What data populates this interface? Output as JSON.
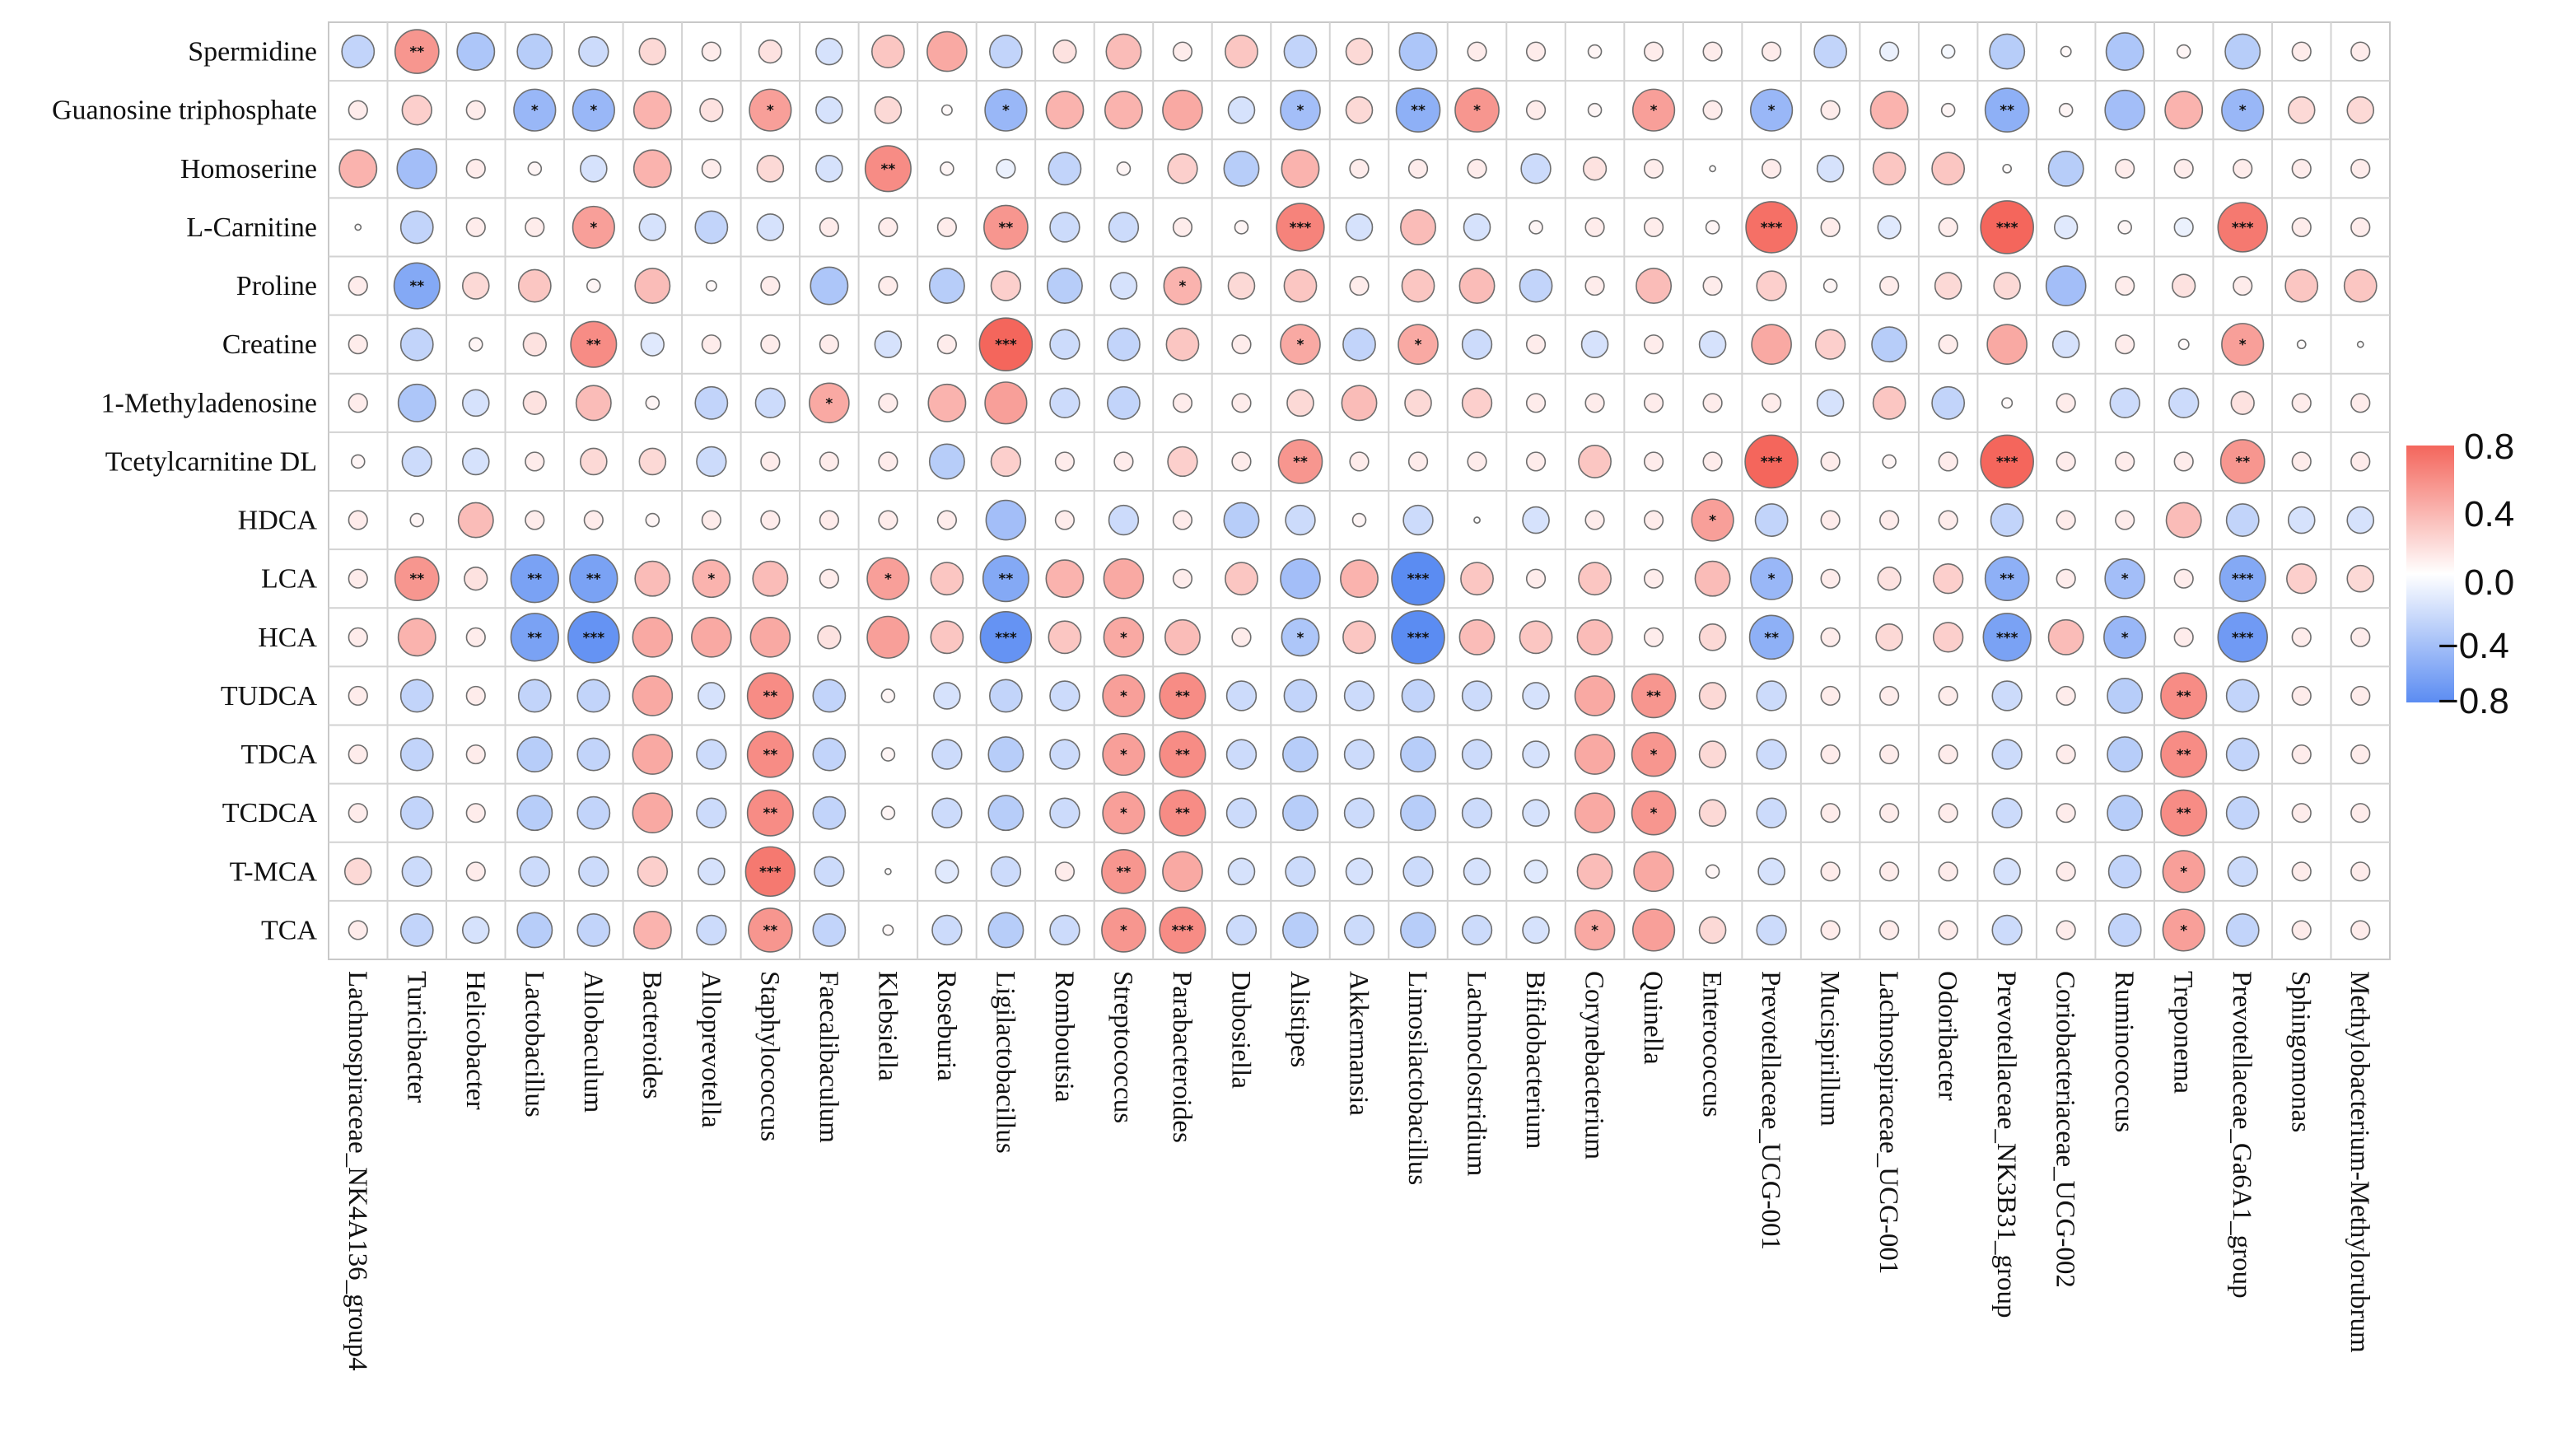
{
  "chart_data": {
    "type": "heatmap",
    "title": "",
    "xlabel": "",
    "ylabel": "",
    "rows": [
      "Spermidine",
      "Guanosine triphosphate",
      "Homoserine",
      "L-Carnitine",
      "Proline",
      "Creatine",
      "1-Methyladenosine",
      "Tcetylcarnitine DL",
      "HDCA",
      "LCA",
      "HCA",
      "TUDCA",
      "TDCA",
      "TCDCA",
      "T-MCA",
      "TCA"
    ],
    "columns": [
      "Lachnospiraceae_NK4A136_group4",
      "Turicibacter",
      "Helicobacter",
      "Lactobacillus",
      "Allobaculum",
      "Bacteroides",
      "Alloprevotella",
      "Staphylococcus",
      "Faecalibaculum",
      "Klebsiella",
      "Roseburia",
      "Ligilactobacillus",
      "Romboutsia",
      "Streptococcus",
      "Parabacteroides",
      "Dubosiella",
      "Alistipes",
      "Akkermansia",
      "Limosilactobacillus",
      "Lachnoclostridium",
      "Bifidobacterium",
      "Corynebacterium",
      "Quinella",
      "Enterococcus",
      "Prevotellaceae_UCG-001",
      "Mucispirillum",
      "Lachnospiraceae_UCG-001",
      "Odoribacter",
      "Prevotellaceae_NK3B31_group",
      "Coriobacteriaceae_UCG-002",
      "Ruminococcus",
      "Treponema",
      "Prevotellaceae_Ga6A1_group",
      "Sphingomonas",
      "Methylobacterium-Methylorubrum"
    ],
    "values": [
      [
        -0.3,
        0.55,
        -0.4,
        -0.35,
        -0.25,
        0.2,
        0.1,
        0.15,
        -0.2,
        0.3,
        0.45,
        -0.3,
        0.15,
        0.35,
        0.1,
        0.3,
        -0.3,
        0.2,
        -0.4,
        0.1,
        0.1,
        0.05,
        0.1,
        0.1,
        0.1,
        -0.3,
        -0.1,
        -0.05,
        -0.35,
        0.03,
        -0.4,
        0.05,
        -0.35,
        0.1,
        0.1
      ],
      [
        0.1,
        0.25,
        0.1,
        -0.5,
        -0.5,
        0.4,
        0.15,
        0.5,
        -0.2,
        0.2,
        0.03,
        -0.5,
        0.4,
        0.4,
        0.45,
        -0.2,
        -0.45,
        0.2,
        -0.55,
        0.55,
        0.1,
        0.05,
        0.5,
        0.1,
        -0.5,
        0.1,
        0.4,
        0.05,
        -0.55,
        0.05,
        -0.45,
        0.4,
        -0.5,
        0.2,
        0.2
      ],
      [
        0.4,
        -0.45,
        0.1,
        0.05,
        -0.2,
        0.4,
        0.1,
        0.2,
        -0.2,
        0.6,
        0.05,
        -0.1,
        -0.3,
        0.05,
        0.25,
        -0.35,
        0.4,
        0.1,
        0.1,
        0.1,
        -0.25,
        0.15,
        0.1,
        0.01,
        0.1,
        -0.2,
        0.3,
        0.3,
        0.02,
        -0.35,
        0.1,
        0.1,
        0.1,
        0.1,
        0.1
      ],
      [
        0.01,
        -0.3,
        0.1,
        0.1,
        0.5,
        -0.2,
        -0.3,
        -0.2,
        0.1,
        0.1,
        0.1,
        0.55,
        -0.25,
        -0.25,
        0.1,
        0.05,
        0.65,
        -0.2,
        0.35,
        -0.2,
        0.05,
        0.1,
        0.1,
        0.05,
        0.75,
        0.1,
        -0.15,
        0.1,
        0.8,
        -0.15,
        0.05,
        -0.1,
        0.7,
        0.1,
        0.1
      ],
      [
        0.1,
        -0.6,
        0.2,
        0.3,
        0.05,
        0.35,
        0.03,
        0.1,
        -0.4,
        0.1,
        -0.35,
        0.25,
        -0.35,
        -0.2,
        0.4,
        0.2,
        0.3,
        0.1,
        0.3,
        0.35,
        -0.3,
        0.1,
        0.35,
        0.1,
        0.25,
        0.05,
        0.1,
        0.2,
        0.2,
        -0.45,
        0.1,
        0.15,
        0.1,
        0.3,
        0.3
      ],
      [
        0.1,
        -0.3,
        0.05,
        0.15,
        0.6,
        -0.15,
        0.1,
        0.1,
        0.1,
        -0.2,
        0.1,
        0.8,
        -0.25,
        -0.3,
        0.3,
        0.1,
        0.45,
        -0.3,
        0.45,
        -0.25,
        0.1,
        -0.2,
        0.1,
        -0.2,
        0.45,
        0.25,
        -0.35,
        0.1,
        0.45,
        -0.2,
        0.1,
        0.03,
        0.5,
        0.02,
        0.01
      ],
      [
        0.1,
        -0.4,
        -0.2,
        0.15,
        0.35,
        0.05,
        -0.3,
        -0.25,
        0.45,
        0.1,
        0.4,
        0.5,
        -0.25,
        -0.3,
        0.1,
        0.1,
        0.2,
        0.35,
        0.2,
        0.25,
        0.1,
        0.1,
        0.1,
        0.1,
        0.1,
        -0.2,
        0.3,
        -0.3,
        0.03,
        0.1,
        -0.25,
        -0.25,
        0.15,
        0.1,
        0.1
      ],
      [
        0.05,
        -0.25,
        -0.2,
        0.1,
        0.2,
        0.2,
        -0.25,
        0.1,
        0.1,
        0.1,
        -0.35,
        0.25,
        0.1,
        0.1,
        0.25,
        0.1,
        0.55,
        0.1,
        0.1,
        0.1,
        0.1,
        0.3,
        0.1,
        0.1,
        0.85,
        0.1,
        0.05,
        0.1,
        0.85,
        0.1,
        0.1,
        0.1,
        0.55,
        0.1,
        0.1
      ],
      [
        0.1,
        0.05,
        0.35,
        0.1,
        0.1,
        0.05,
        0.1,
        0.1,
        0.1,
        0.1,
        0.1,
        -0.45,
        0.1,
        -0.25,
        0.1,
        -0.35,
        -0.25,
        0.05,
        -0.25,
        0.01,
        -0.2,
        0.1,
        0.1,
        0.5,
        -0.3,
        0.1,
        0.1,
        0.1,
        -0.3,
        0.1,
        0.1,
        0.35,
        -0.3,
        -0.2,
        -0.2
      ],
      [
        0.1,
        0.55,
        0.15,
        -0.65,
        -0.65,
        0.35,
        0.4,
        0.35,
        0.1,
        0.5,
        0.3,
        -0.6,
        0.4,
        0.45,
        0.1,
        0.3,
        -0.45,
        0.4,
        -0.8,
        0.3,
        0.1,
        0.3,
        0.1,
        0.35,
        -0.5,
        0.1,
        0.15,
        0.25,
        -0.55,
        0.1,
        -0.45,
        0.1,
        -0.6,
        0.25,
        0.2
      ],
      [
        0.1,
        0.4,
        0.1,
        -0.65,
        -0.75,
        0.45,
        0.45,
        0.45,
        0.15,
        0.5,
        0.3,
        -0.75,
        0.3,
        0.45,
        0.35,
        0.1,
        -0.4,
        0.3,
        -0.85,
        0.35,
        0.3,
        0.35,
        0.1,
        0.2,
        -0.55,
        0.1,
        0.2,
        0.25,
        -0.65,
        0.35,
        -0.5,
        0.1,
        -0.7,
        0.1,
        0.1
      ],
      [
        0.1,
        -0.3,
        0.1,
        -0.3,
        -0.3,
        0.45,
        -0.2,
        0.6,
        -0.3,
        0.05,
        -0.2,
        -0.3,
        -0.25,
        0.5,
        0.6,
        -0.25,
        -0.3,
        -0.25,
        -0.3,
        -0.25,
        -0.2,
        0.45,
        0.55,
        0.2,
        -0.25,
        0.1,
        0.1,
        0.1,
        -0.25,
        0.1,
        -0.35,
        0.6,
        -0.3,
        0.1,
        0.1
      ],
      [
        0.1,
        -0.3,
        0.1,
        -0.35,
        -0.3,
        0.45,
        -0.25,
        0.6,
        -0.3,
        0.05,
        -0.25,
        -0.35,
        -0.25,
        0.5,
        0.6,
        -0.25,
        -0.35,
        -0.25,
        -0.35,
        -0.25,
        -0.2,
        0.45,
        0.55,
        0.2,
        -0.25,
        0.1,
        0.1,
        0.1,
        -0.25,
        0.1,
        -0.35,
        0.6,
        -0.3,
        0.1,
        0.1
      ],
      [
        0.1,
        -0.3,
        0.1,
        -0.35,
        -0.3,
        0.45,
        -0.25,
        0.6,
        -0.3,
        0.05,
        -0.25,
        -0.35,
        -0.25,
        0.5,
        0.6,
        -0.25,
        -0.35,
        -0.25,
        -0.35,
        -0.25,
        -0.2,
        0.45,
        0.55,
        0.2,
        -0.25,
        0.1,
        0.1,
        0.1,
        -0.25,
        0.1,
        -0.35,
        0.6,
        -0.3,
        0.1,
        0.1
      ],
      [
        0.2,
        -0.25,
        0.1,
        -0.25,
        -0.25,
        0.25,
        -0.2,
        0.7,
        -0.25,
        0.01,
        -0.15,
        -0.25,
        0.1,
        0.55,
        0.45,
        -0.2,
        -0.25,
        -0.2,
        -0.25,
        -0.2,
        -0.15,
        0.35,
        0.45,
        0.05,
        -0.2,
        0.1,
        0.1,
        0.1,
        -0.2,
        0.1,
        -0.3,
        0.5,
        -0.25,
        0.1,
        0.1
      ],
      [
        0.1,
        -0.3,
        -0.2,
        -0.35,
        -0.3,
        0.4,
        -0.25,
        0.55,
        -0.3,
        0.03,
        -0.25,
        -0.35,
        -0.25,
        0.55,
        0.6,
        -0.25,
        -0.35,
        -0.25,
        -0.35,
        -0.25,
        -0.2,
        0.45,
        0.5,
        0.2,
        -0.25,
        0.1,
        0.1,
        0.1,
        -0.25,
        0.1,
        -0.3,
        0.5,
        -0.3,
        0.1,
        0.1
      ]
    ],
    "significance": [
      [
        "",
        "**",
        "",
        "",
        "",
        "",
        "",
        "",
        "",
        "",
        "",
        "",
        "",
        "",
        "",
        "",
        "",
        "",
        "",
        "",
        "",
        "",
        "",
        "",
        "",
        "",
        "",
        "",
        "",
        "",
        "",
        "",
        "",
        "",
        ""
      ],
      [
        "",
        "",
        "",
        "*",
        "*",
        "",
        "",
        "*",
        "",
        "",
        "",
        "*",
        "",
        "",
        "",
        "",
        "*",
        "",
        "**",
        "*",
        "",
        "",
        "*",
        "",
        "*",
        "",
        "",
        "",
        "**",
        "",
        "",
        "",
        "*",
        "",
        ""
      ],
      [
        "",
        "",
        "",
        "",
        "",
        "",
        "",
        "",
        "",
        "**",
        "",
        "",
        "",
        "",
        "",
        "",
        "",
        "",
        "",
        "",
        "",
        "",
        "",
        "",
        "",
        "",
        "",
        "",
        "",
        "",
        "",
        "",
        "",
        "",
        ""
      ],
      [
        "",
        "",
        "",
        "",
        "*",
        "",
        "",
        "",
        "",
        "",
        "",
        "**",
        "",
        "",
        "",
        "",
        "***",
        "",
        "",
        "",
        "",
        "",
        "",
        "",
        "***",
        "",
        "",
        "",
        "***",
        "",
        "",
        "",
        "***",
        "",
        ""
      ],
      [
        "",
        "**",
        "",
        "",
        "",
        "",
        "",
        "",
        "",
        "",
        "",
        "",
        "",
        "",
        "*",
        "",
        "",
        "",
        "",
        "",
        "",
        "",
        "",
        "",
        "",
        "",
        "",
        "",
        "",
        "",
        "",
        "",
        "",
        "",
        ""
      ],
      [
        "",
        "",
        "",
        "",
        "**",
        "",
        "",
        "",
        "",
        "",
        "",
        "***",
        "",
        "",
        "",
        "",
        "*",
        "",
        "*",
        "",
        "",
        "",
        "",
        "",
        "",
        "",
        "",
        "",
        "",
        "",
        "",
        "",
        "*",
        "",
        ""
      ],
      [
        "",
        "",
        "",
        "",
        "",
        "",
        "",
        "",
        "*",
        "",
        "",
        "",
        "",
        "",
        "",
        "",
        "",
        "",
        "",
        "",
        "",
        "",
        "",
        "",
        "",
        "",
        "",
        "",
        "",
        "",
        "",
        "",
        "",
        "",
        ""
      ],
      [
        "",
        "",
        "",
        "",
        "",
        "",
        "",
        "",
        "",
        "",
        "",
        "",
        "",
        "",
        "",
        "",
        "**",
        "",
        "",
        "",
        "",
        "",
        "",
        "",
        "***",
        "",
        "",
        "",
        "***",
        "",
        "",
        "",
        "**",
        "",
        ""
      ],
      [
        "",
        "",
        "",
        "",
        "",
        "",
        "",
        "",
        "",
        "",
        "",
        "",
        "",
        "",
        "",
        "",
        "",
        "",
        "",
        "",
        "",
        "",
        "",
        "*",
        "",
        "",
        "",
        "",
        "",
        "",
        "",
        "",
        "",
        "",
        ""
      ],
      [
        "",
        "**",
        "",
        "**",
        "**",
        "",
        "*",
        "",
        "",
        "*",
        "",
        "**",
        "",
        "",
        "",
        "",
        "",
        "",
        "***",
        "",
        "",
        "",
        "",
        "",
        "*",
        "",
        "",
        "",
        "**",
        "",
        "*",
        "",
        "***",
        "",
        ""
      ],
      [
        "",
        "",
        "",
        "**",
        "***",
        "",
        "",
        "",
        "",
        "",
        "",
        "***",
        "",
        "*",
        "",
        "",
        "*",
        "",
        "***",
        "",
        "",
        "",
        "",
        "",
        "**",
        "",
        "",
        "",
        "***",
        "",
        "*",
        "",
        "***",
        "",
        ""
      ],
      [
        "",
        "",
        "",
        "",
        "",
        "",
        "",
        "**",
        "",
        "",
        "",
        "",
        "",
        "*",
        "**",
        "",
        "",
        "",
        "",
        "",
        "",
        "",
        "**",
        "",
        "",
        "",
        "",
        "",
        "",
        "",
        "",
        "**",
        "",
        "",
        ""
      ],
      [
        "",
        "",
        "",
        "",
        "",
        "",
        "",
        "**",
        "",
        "",
        "",
        "",
        "",
        "*",
        "**",
        "",
        "",
        "",
        "",
        "",
        "",
        "",
        "*",
        "",
        "",
        "",
        "",
        "",
        "",
        "",
        "",
        "**",
        "",
        "",
        ""
      ],
      [
        "",
        "",
        "",
        "",
        "",
        "",
        "",
        "**",
        "",
        "",
        "",
        "",
        "",
        "*",
        "**",
        "",
        "",
        "",
        "",
        "",
        "",
        "",
        "*",
        "",
        "",
        "",
        "",
        "",
        "",
        "",
        "",
        "**",
        "",
        "",
        ""
      ],
      [
        "",
        "",
        "",
        "",
        "",
        "",
        "",
        "***",
        "",
        "",
        "",
        "",
        "",
        "**",
        "",
        "",
        "",
        "",
        "",
        "",
        "",
        "",
        "",
        "",
        "",
        "",
        "",
        "",
        "",
        "",
        "",
        "*",
        "",
        "",
        ""
      ],
      [
        "",
        "",
        "",
        "",
        "",
        "",
        "",
        "**",
        "",
        "",
        "",
        "",
        "",
        "*",
        "***",
        "",
        "",
        "",
        "",
        "",
        "",
        "*",
        "",
        "",
        "",
        "",
        "",
        "",
        "",
        "",
        "",
        "*",
        "",
        "",
        ""
      ]
    ],
    "colorbar": {
      "range": [
        -0.8,
        0.8
      ],
      "ticks": [
        "0.8",
        "0.4",
        "0.0",
        "−0.4",
        "−0.8"
      ],
      "low_color": "#5b8cf2",
      "mid_color": "#ffffff",
      "high_color": "#f4665c"
    }
  }
}
